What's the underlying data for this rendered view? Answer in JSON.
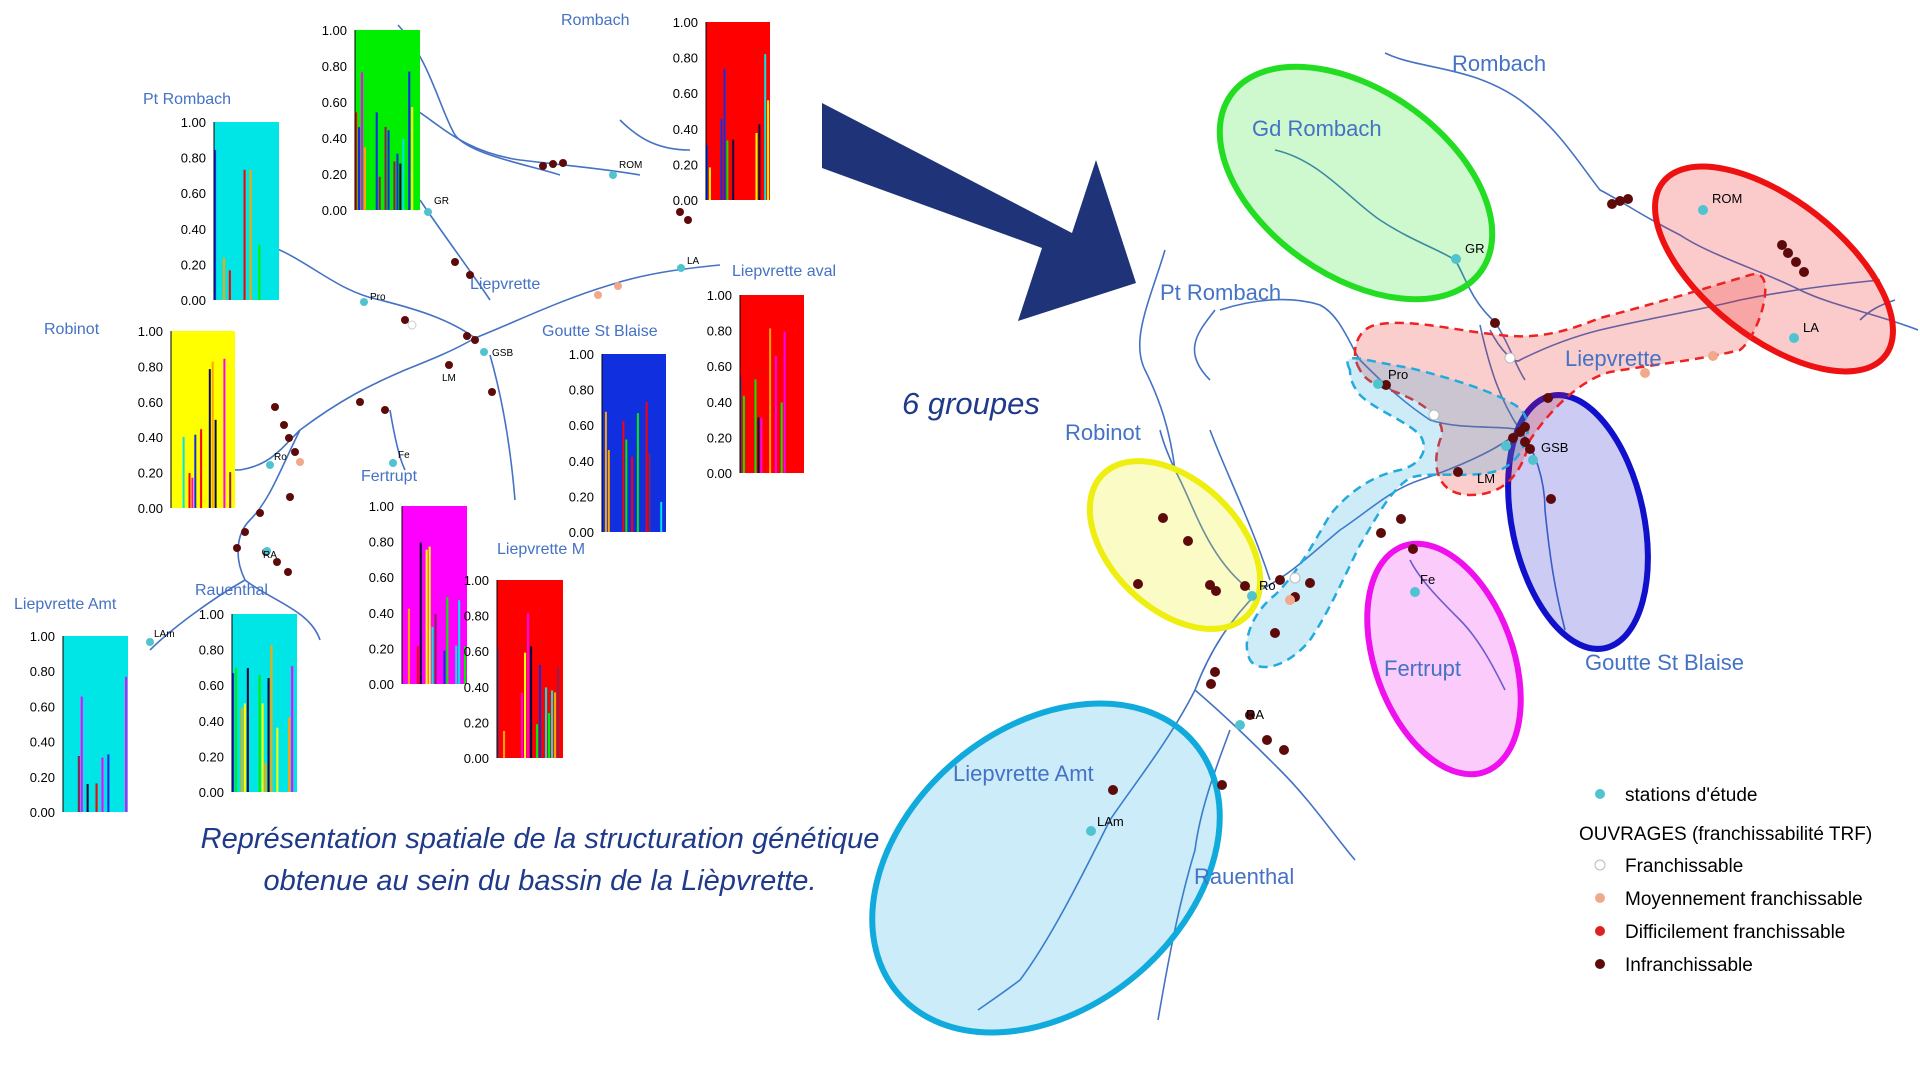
{
  "left_panel": {
    "caption_line1": "Représentation spatiale de la structuration génétique",
    "caption_line2": "obtenue au sein du bassin de la Lièpvrette.",
    "population_labels": {
      "rombach": "Rombach",
      "pt_rombach": "Pt Rombach",
      "robinot": "Robinot",
      "liepvrette": "Liepvrette",
      "goutte_st_blaise": "Goutte St Blaise",
      "liepvrette_aval": "Liepvrette aval",
      "fertrupt": "Fertrupt",
      "liepvrette_m": "Liepvrette M",
      "rauenthal": "Rauenthal",
      "liepvrette_amt": "Liepvrette Amt"
    },
    "station_codes": {
      "gr": "GR",
      "rom": "ROM",
      "pro": "Pro",
      "la": "LA",
      "gsb": "GSB",
      "lm": "LM",
      "ro": "Ro",
      "fe": "Fe",
      "ra": "RA",
      "lam": "LAm"
    },
    "axis_ticks": [
      "1.00",
      "0.80",
      "0.60",
      "0.40",
      "0.20",
      "0.00"
    ],
    "structure_plots": [
      {
        "name": "Gd Rombach",
        "dominant_color": "#00EE00"
      },
      {
        "name": "Rombach",
        "dominant_color": "#FF0000"
      },
      {
        "name": "Pt Rombach",
        "dominant_color": "#00E5E5"
      },
      {
        "name": "Robinot",
        "dominant_color": "#FFFF00"
      },
      {
        "name": "Goutte St Blaise",
        "dominant_color": "#1030E0"
      },
      {
        "name": "Liepvrette aval",
        "dominant_color": "#FF0000"
      },
      {
        "name": "Fertrupt",
        "dominant_color": "#FF00FF"
      },
      {
        "name": "Liepvrette M",
        "dominant_color": "#FF0000"
      },
      {
        "name": "Rauenthal",
        "dominant_color": "#00E5E5"
      },
      {
        "name": "Liepvrette Amt",
        "dominant_color": "#00E5E5"
      }
    ]
  },
  "arrow": {
    "color": "#1F3478"
  },
  "groups_label": "6 groupes",
  "right_panel": {
    "labels": {
      "rombach": "Rombach",
      "gd_rombach": "Gd Rombach",
      "pt_rombach": "Pt Rombach",
      "liepvrette": "Liepvrette",
      "robinot": "Robinot",
      "goutte_st_blaise": "Goutte St Blaise",
      "fertrupt": "Fertrupt",
      "liepvrette_amt": "Liepvrette Amt",
      "rauenthal": "Rauenthal"
    },
    "station_codes": {
      "rom": "ROM",
      "gr": "GR",
      "la": "LA",
      "pro": "Pro",
      "gsb": "GSB",
      "lm": "LM",
      "ro": "Ro",
      "fe": "Fe",
      "ra": "RA",
      "lam": "LAm"
    },
    "group_colors": {
      "gd_rombach": "#22DD22",
      "rombach": "#EE1111",
      "robinot": "#EEEE11",
      "goutte_st_blaise": "#1111CC",
      "fertrupt": "#EE11EE",
      "liepvrette_amt": "#11AADD",
      "liepvrette_red": "#EE2222",
      "liepvrette_blue": "#22AADD"
    },
    "legend": {
      "stations": "stations d'étude",
      "title": "OUVRAGES (franchissabilité TRF)",
      "franchissable": "Franchissable",
      "moyennement": "Moyennement franchissable",
      "difficilement": "Difficilement franchissable",
      "infranchissable": "Infranchissable",
      "colors": {
        "stations": "#4FC3D0",
        "franchissable": "#FFFFFF",
        "moyennement": "#F2A88A",
        "difficilement": "#DD2222",
        "infranchissable": "#5C0A0A"
      }
    }
  }
}
